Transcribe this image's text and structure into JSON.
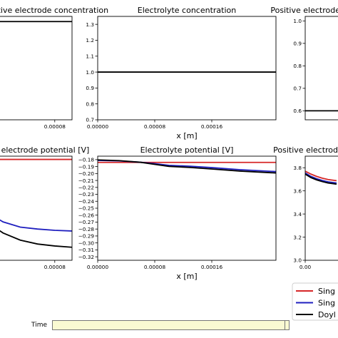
{
  "chart_data": [
    {
      "type": "line",
      "title": "Negative electrode concentration",
      "xlabel": "",
      "ylabel": "",
      "xlim": [
        0,
        0.0001
      ],
      "ylim": [
        0,
        1.4
      ],
      "xticks": [
        8e-05
      ],
      "xtick_labels": [
        "0.00008"
      ],
      "yticks": [],
      "ytick_labels": [],
      "series": [
        {
          "name": "",
          "color": "#000000",
          "x": [
            0,
            0.0001
          ],
          "y": [
            1.33,
            1.33
          ]
        }
      ]
    },
    {
      "type": "line",
      "title": "Electrolyte concentration",
      "xlabel": "x [m]",
      "ylabel": "",
      "xlim": [
        0,
        0.00025
      ],
      "ylim": [
        0.7,
        1.35
      ],
      "xticks": [
        0,
        8e-05,
        0.00016
      ],
      "xtick_labels": [
        "0.00000",
        "0.00008",
        "0.00016"
      ],
      "yticks": [
        0.7,
        0.8,
        0.9,
        1.0,
        1.1,
        1.2,
        1.3
      ],
      "ytick_labels": [
        "0.7",
        "0.8",
        "0.9",
        "1.0",
        "1.1",
        "1.2",
        "1.3"
      ],
      "series": [
        {
          "name": "",
          "color": "#000000",
          "x": [
            0,
            0.00025
          ],
          "y": [
            1.0,
            1.0
          ]
        }
      ]
    },
    {
      "type": "line",
      "title": "Positive electrode concentration",
      "xlabel": "",
      "ylabel": "",
      "xlim": [
        0,
        0.0001
      ],
      "ylim": [
        0.56,
        1.02
      ],
      "xticks": [],
      "xtick_labels": [],
      "yticks": [
        0.6,
        0.7,
        0.8,
        0.9,
        1.0
      ],
      "ytick_labels": [
        "0.6",
        "0.7",
        "0.8",
        "0.9",
        "1.0"
      ],
      "series": [
        {
          "name": "",
          "color": "#000000",
          "x": [
            0,
            0.0001
          ],
          "y": [
            0.6,
            0.6
          ]
        }
      ]
    },
    {
      "type": "line",
      "title": "Negative electrode potential [V]",
      "xlabel": "",
      "ylabel": "",
      "xlim": [
        0,
        0.0001
      ],
      "ylim": [
        -0.0155,
        0.0005
      ],
      "xticks": [
        8e-05
      ],
      "xtick_labels": [
        "0.00008"
      ],
      "yticks": [],
      "ytick_labels": [],
      "series": [
        {
          "name": "",
          "color": "#d62728",
          "x": [
            0,
            0.0001
          ],
          "y": [
            0,
            0
          ]
        },
        {
          "name": "",
          "color": "#1f1fbf",
          "x": [
            0,
            2e-05,
            4e-05,
            6e-05,
            8e-05,
            0.0001
          ],
          "y": [
            -0.008,
            -0.0096,
            -0.0104,
            -0.0107,
            -0.0109,
            -0.011
          ]
        },
        {
          "name": "",
          "color": "#000000",
          "x": [
            0,
            2e-05,
            4e-05,
            6e-05,
            8e-05,
            0.0001
          ],
          "y": [
            -0.0095,
            -0.0113,
            -0.0124,
            -0.013,
            -0.0133,
            -0.0135
          ]
        }
      ]
    },
    {
      "type": "line",
      "title": "Electrolyte potential [V]",
      "xlabel": "x [m]",
      "ylabel": "",
      "xlim": [
        0,
        0.00025
      ],
      "ylim": [
        -0.325,
        -0.175
      ],
      "xticks": [
        0,
        8e-05,
        0.00016
      ],
      "xtick_labels": [
        "0.00000",
        "0.00008",
        "0.00016"
      ],
      "yticks": [
        -0.18,
        -0.19,
        -0.2,
        -0.21,
        -0.22,
        -0.23,
        -0.24,
        -0.25,
        -0.26,
        -0.27,
        -0.28,
        -0.29,
        -0.3,
        -0.31,
        -0.32
      ],
      "ytick_labels": [
        "−0.18",
        "−0.19",
        "−0.20",
        "−0.21",
        "−0.22",
        "−0.23",
        "−0.24",
        "−0.25",
        "−0.26",
        "−0.27",
        "−0.28",
        "−0.29",
        "−0.30",
        "−0.31",
        "−0.32"
      ],
      "series": [
        {
          "name": "",
          "color": "#d62728",
          "x": [
            0,
            0.00025
          ],
          "y": [
            -0.184,
            -0.184
          ]
        },
        {
          "name": "",
          "color": "#1f1fbf",
          "x": [
            0,
            3e-05,
            6e-05,
            8e-05,
            0.0001,
            0.00013,
            0.00016,
            0.0002,
            0.00025
          ],
          "y": [
            -0.1812,
            -0.1818,
            -0.1838,
            -0.1858,
            -0.1882,
            -0.1895,
            -0.1915,
            -0.1945,
            -0.1972
          ]
        },
        {
          "name": "",
          "color": "#000000",
          "x": [
            0,
            3e-05,
            6e-05,
            8e-05,
            0.0001,
            0.00013,
            0.00016,
            0.0002,
            0.00025
          ],
          "y": [
            -0.1804,
            -0.1814,
            -0.1838,
            -0.1868,
            -0.1897,
            -0.1913,
            -0.1935,
            -0.1965,
            -0.1992
          ]
        }
      ]
    },
    {
      "type": "line",
      "title": "Positive electrode potential [V]",
      "xlabel": "",
      "ylabel": "",
      "xlim": [
        0,
        0.0001
      ],
      "ylim": [
        3.0,
        3.9
      ],
      "xticks": [
        0
      ],
      "xtick_labels": [
        "0.00"
      ],
      "yticks": [
        3.0,
        3.2,
        3.4,
        3.6,
        3.8
      ],
      "ytick_labels": [
        "3.0",
        "3.2",
        "3.4",
        "3.6",
        "3.8"
      ],
      "series": [
        {
          "name": "",
          "color": "#d62728",
          "x": [
            0,
            1e-05,
            2e-05,
            3e-05,
            4e-05,
            5.5e-05
          ],
          "y": [
            3.77,
            3.745,
            3.725,
            3.71,
            3.698,
            3.688
          ]
        },
        {
          "name": "",
          "color": "#1f1fbf",
          "x": [
            0,
            1e-05,
            2e-05,
            3e-05,
            4e-05,
            5.5e-05
          ],
          "y": [
            3.755,
            3.725,
            3.705,
            3.69,
            3.678,
            3.668
          ]
        },
        {
          "name": "",
          "color": "#000000",
          "x": [
            0,
            1e-05,
            2e-05,
            3e-05,
            4e-05,
            5.5e-05
          ],
          "y": [
            3.745,
            3.715,
            3.695,
            3.68,
            3.668,
            3.658
          ]
        }
      ]
    }
  ],
  "legend": {
    "placement": "bottom-right",
    "entries": [
      {
        "label": "Sing",
        "color": "#d62728"
      },
      {
        "label": "Sing",
        "color": "#1f1fbf"
      },
      {
        "label": "Doyl",
        "color": "#000000"
      }
    ]
  },
  "slider": {
    "label": "Time"
  }
}
